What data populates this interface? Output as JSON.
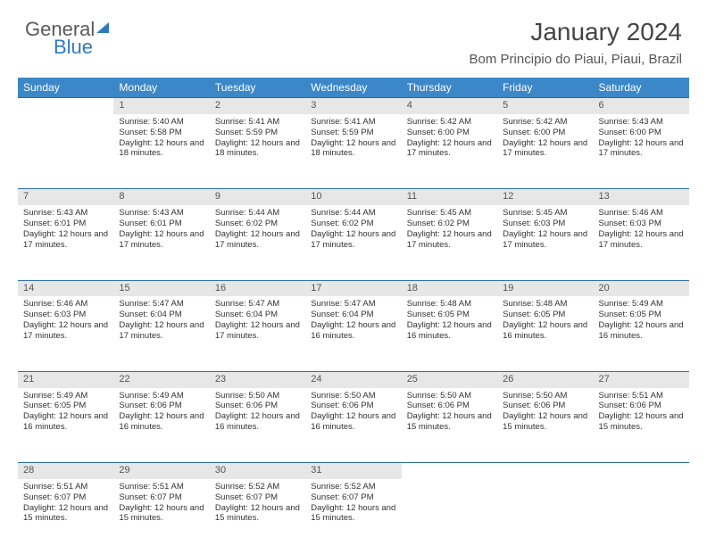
{
  "logo": {
    "text1": "General",
    "text2": "Blue"
  },
  "title": "January 2024",
  "location": "Bom Principio do Piaui, Piaui, Brazil",
  "colors": {
    "header_bg": "#3b87c8",
    "header_text": "#ffffff",
    "daynum_bg": "#e7e7e7",
    "row_border": "#2f6fa8",
    "body_text": "#333333",
    "logo_gray": "#5a5a5a",
    "logo_blue": "#2f7bbf"
  },
  "weekdays": [
    "Sunday",
    "Monday",
    "Tuesday",
    "Wednesday",
    "Thursday",
    "Friday",
    "Saturday"
  ],
  "weeks": [
    [
      null,
      {
        "n": "1",
        "sr": "5:40 AM",
        "ss": "5:58 PM",
        "dl": "12 hours and 18 minutes."
      },
      {
        "n": "2",
        "sr": "5:41 AM",
        "ss": "5:59 PM",
        "dl": "12 hours and 18 minutes."
      },
      {
        "n": "3",
        "sr": "5:41 AM",
        "ss": "5:59 PM",
        "dl": "12 hours and 18 minutes."
      },
      {
        "n": "4",
        "sr": "5:42 AM",
        "ss": "6:00 PM",
        "dl": "12 hours and 17 minutes."
      },
      {
        "n": "5",
        "sr": "5:42 AM",
        "ss": "6:00 PM",
        "dl": "12 hours and 17 minutes."
      },
      {
        "n": "6",
        "sr": "5:43 AM",
        "ss": "6:00 PM",
        "dl": "12 hours and 17 minutes."
      }
    ],
    [
      {
        "n": "7",
        "sr": "5:43 AM",
        "ss": "6:01 PM",
        "dl": "12 hours and 17 minutes."
      },
      {
        "n": "8",
        "sr": "5:43 AM",
        "ss": "6:01 PM",
        "dl": "12 hours and 17 minutes."
      },
      {
        "n": "9",
        "sr": "5:44 AM",
        "ss": "6:02 PM",
        "dl": "12 hours and 17 minutes."
      },
      {
        "n": "10",
        "sr": "5:44 AM",
        "ss": "6:02 PM",
        "dl": "12 hours and 17 minutes."
      },
      {
        "n": "11",
        "sr": "5:45 AM",
        "ss": "6:02 PM",
        "dl": "12 hours and 17 minutes."
      },
      {
        "n": "12",
        "sr": "5:45 AM",
        "ss": "6:03 PM",
        "dl": "12 hours and 17 minutes."
      },
      {
        "n": "13",
        "sr": "5:46 AM",
        "ss": "6:03 PM",
        "dl": "12 hours and 17 minutes."
      }
    ],
    [
      {
        "n": "14",
        "sr": "5:46 AM",
        "ss": "6:03 PM",
        "dl": "12 hours and 17 minutes."
      },
      {
        "n": "15",
        "sr": "5:47 AM",
        "ss": "6:04 PM",
        "dl": "12 hours and 17 minutes."
      },
      {
        "n": "16",
        "sr": "5:47 AM",
        "ss": "6:04 PM",
        "dl": "12 hours and 17 minutes."
      },
      {
        "n": "17",
        "sr": "5:47 AM",
        "ss": "6:04 PM",
        "dl": "12 hours and 16 minutes."
      },
      {
        "n": "18",
        "sr": "5:48 AM",
        "ss": "6:05 PM",
        "dl": "12 hours and 16 minutes."
      },
      {
        "n": "19",
        "sr": "5:48 AM",
        "ss": "6:05 PM",
        "dl": "12 hours and 16 minutes."
      },
      {
        "n": "20",
        "sr": "5:49 AM",
        "ss": "6:05 PM",
        "dl": "12 hours and 16 minutes."
      }
    ],
    [
      {
        "n": "21",
        "sr": "5:49 AM",
        "ss": "6:05 PM",
        "dl": "12 hours and 16 minutes."
      },
      {
        "n": "22",
        "sr": "5:49 AM",
        "ss": "6:06 PM",
        "dl": "12 hours and 16 minutes."
      },
      {
        "n": "23",
        "sr": "5:50 AM",
        "ss": "6:06 PM",
        "dl": "12 hours and 16 minutes."
      },
      {
        "n": "24",
        "sr": "5:50 AM",
        "ss": "6:06 PM",
        "dl": "12 hours and 16 minutes."
      },
      {
        "n": "25",
        "sr": "5:50 AM",
        "ss": "6:06 PM",
        "dl": "12 hours and 15 minutes."
      },
      {
        "n": "26",
        "sr": "5:50 AM",
        "ss": "6:06 PM",
        "dl": "12 hours and 15 minutes."
      },
      {
        "n": "27",
        "sr": "5:51 AM",
        "ss": "6:06 PM",
        "dl": "12 hours and 15 minutes."
      }
    ],
    [
      {
        "n": "28",
        "sr": "5:51 AM",
        "ss": "6:07 PM",
        "dl": "12 hours and 15 minutes."
      },
      {
        "n": "29",
        "sr": "5:51 AM",
        "ss": "6:07 PM",
        "dl": "12 hours and 15 minutes."
      },
      {
        "n": "30",
        "sr": "5:52 AM",
        "ss": "6:07 PM",
        "dl": "12 hours and 15 minutes."
      },
      {
        "n": "31",
        "sr": "5:52 AM",
        "ss": "6:07 PM",
        "dl": "12 hours and 15 minutes."
      },
      null,
      null,
      null
    ]
  ],
  "labels": {
    "sunrise": "Sunrise:",
    "sunset": "Sunset:",
    "daylight": "Daylight:"
  }
}
